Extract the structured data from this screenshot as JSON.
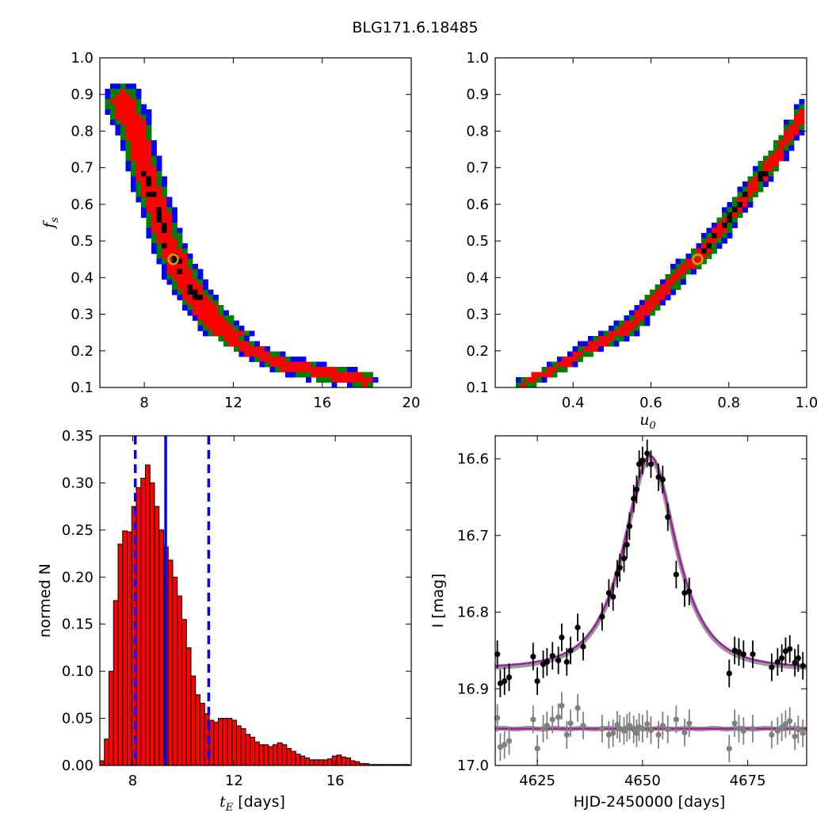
{
  "figure": {
    "title": "BLG171.6.18485"
  },
  "chart_data": [
    {
      "id": "fs_vs_tE",
      "type": "heatmap",
      "ylabel": "f_s",
      "xlabel": "",
      "xlim": [
        6,
        20
      ],
      "ylim": [
        0.1,
        1.0
      ],
      "xticks": [
        "8",
        "12",
        "16",
        "20"
      ],
      "yticks": [
        "0.1",
        "0.2",
        "0.3",
        "0.4",
        "0.5",
        "0.6",
        "0.7",
        "0.8",
        "0.9",
        "1.0"
      ],
      "confidence_colors": {
        "inner": "#000000",
        "sigma1": "#ff0000",
        "sigma2": "#008000",
        "sigma3": "#0000ff"
      },
      "ridge": [
        [
          7.0,
          0.88
        ],
        [
          7.6,
          0.8
        ],
        [
          8.0,
          0.7
        ],
        [
          8.5,
          0.6
        ],
        [
          9.0,
          0.5
        ],
        [
          9.6,
          0.42
        ],
        [
          10.3,
          0.35
        ],
        [
          11.0,
          0.29
        ],
        [
          12.0,
          0.23
        ],
        [
          13.2,
          0.19
        ],
        [
          14.5,
          0.16
        ],
        [
          16.0,
          0.14
        ],
        [
          18.0,
          0.12
        ]
      ],
      "best_fit": {
        "x": 9.3,
        "y": 0.45,
        "marker_color": "#c8a600"
      }
    },
    {
      "id": "fs_vs_u0",
      "type": "heatmap",
      "xlabel": "u_0",
      "ylabel": "",
      "xlim": [
        0.2,
        1.0
      ],
      "ylim": [
        0.1,
        1.0
      ],
      "xticks": [
        "0.4",
        "0.6",
        "0.8",
        "1.0"
      ],
      "yticks": [
        "0.1",
        "0.2",
        "0.3",
        "0.4",
        "0.5",
        "0.6",
        "0.7",
        "0.8",
        "0.9",
        "1.0"
      ],
      "confidence_colors": {
        "inner": "#000000",
        "sigma1": "#ff0000",
        "sigma2": "#008000",
        "sigma3": "#0000ff"
      },
      "ridge": [
        [
          0.27,
          0.11
        ],
        [
          0.35,
          0.15
        ],
        [
          0.45,
          0.21
        ],
        [
          0.55,
          0.27
        ],
        [
          0.62,
          0.35
        ],
        [
          0.68,
          0.42
        ],
        [
          0.72,
          0.45
        ],
        [
          0.78,
          0.53
        ],
        [
          0.85,
          0.63
        ],
        [
          0.92,
          0.73
        ],
        [
          1.0,
          0.86
        ]
      ],
      "best_fit": {
        "x": 0.72,
        "y": 0.45,
        "marker_color": "#c8a600"
      }
    },
    {
      "id": "tE_histogram",
      "type": "bar",
      "xlabel": "t_E [days]",
      "ylabel": "normed N",
      "xlim": [
        6.7,
        19.0
      ],
      "ylim": [
        0,
        0.35
      ],
      "xticks": [
        "8",
        "12",
        "16"
      ],
      "yticks": [
        "0.00",
        "0.05",
        "0.10",
        "0.15",
        "0.20",
        "0.25",
        "0.30",
        "0.35"
      ],
      "bin_start": 6.7,
      "bin_width": 0.18,
      "values": [
        0.005,
        0.028,
        0.1,
        0.175,
        0.235,
        0.249,
        0.248,
        0.275,
        0.295,
        0.305,
        0.319,
        0.3,
        0.275,
        0.25,
        0.232,
        0.218,
        0.2,
        0.18,
        0.155,
        0.125,
        0.095,
        0.075,
        0.066,
        0.055,
        0.048,
        0.046,
        0.05,
        0.05,
        0.05,
        0.048,
        0.042,
        0.039,
        0.033,
        0.03,
        0.025,
        0.022,
        0.022,
        0.02,
        0.022,
        0.024,
        0.022,
        0.018,
        0.015,
        0.012,
        0.01,
        0.008,
        0.006,
        0.006,
        0.006,
        0.006,
        0.007,
        0.01,
        0.011,
        0.009,
        0.008,
        0.005,
        0.004,
        0.002,
        0.002,
        0.001,
        0.001,
        0.001,
        0.001,
        0.001,
        0.001,
        0.001,
        0.001,
        0.001
      ],
      "bar_color": "#ff0000",
      "median": 9.3,
      "lower": 8.1,
      "upper": 11.0,
      "line_color": "#0000ff"
    },
    {
      "id": "light_curve",
      "type": "scatter",
      "xlabel": "HJD-2450000 [days]",
      "ylabel": "I [mag]",
      "xlim": [
        4615,
        4689
      ],
      "ylim": [
        17.0,
        16.57
      ],
      "xticks": [
        "4625",
        "4650",
        "4675"
      ],
      "yticks": [
        "16.6",
        "16.7",
        "16.8",
        "16.9",
        "17.0"
      ],
      "model": {
        "t0": 4651.8,
        "u0": 0.72,
        "tE": 9.3,
        "fs": 0.45,
        "I_base": 16.873,
        "color": "#a020a0",
        "alt_color": "#808080"
      },
      "data": [
        [
          4615.5,
          16.855
        ],
        [
          4616.2,
          16.893
        ],
        [
          4617.2,
          16.89
        ],
        [
          4618.3,
          16.885
        ],
        [
          4624.0,
          16.858
        ],
        [
          4625.0,
          16.89
        ],
        [
          4626.4,
          16.868
        ],
        [
          4627.3,
          16.865
        ],
        [
          4628.6,
          16.857
        ],
        [
          4630.0,
          16.863
        ],
        [
          4630.8,
          16.833
        ],
        [
          4632.0,
          16.865
        ],
        [
          4632.9,
          16.85
        ],
        [
          4634.6,
          16.82
        ],
        [
          4635.9,
          16.845
        ],
        [
          4640.4,
          16.806
        ],
        [
          4642.0,
          16.775
        ],
        [
          4643.0,
          16.78
        ],
        [
          4644.0,
          16.75
        ],
        [
          4644.6,
          16.742
        ],
        [
          4645.6,
          16.73
        ],
        [
          4646.3,
          16.712
        ],
        [
          4646.9,
          16.688
        ],
        [
          4647.9,
          16.652
        ],
        [
          4648.6,
          16.64
        ],
        [
          4649.2,
          16.607
        ],
        [
          4650.0,
          16.602
        ],
        [
          4651.1,
          16.593
        ],
        [
          4652.0,
          16.607
        ],
        [
          4653.8,
          16.624
        ],
        [
          4654.8,
          16.627
        ],
        [
          4656.0,
          16.676
        ],
        [
          4658.0,
          16.751
        ],
        [
          4660.0,
          16.775
        ],
        [
          4661.1,
          16.773
        ],
        [
          4670.6,
          16.88
        ],
        [
          4671.9,
          16.85
        ],
        [
          4672.9,
          16.852
        ],
        [
          4674.0,
          16.855
        ],
        [
          4676.2,
          16.855
        ],
        [
          4680.7,
          16.872
        ],
        [
          4682.1,
          16.865
        ],
        [
          4683.1,
          16.86
        ],
        [
          4684.0,
          16.851
        ],
        [
          4685.0,
          16.848
        ],
        [
          4686.2,
          16.866
        ],
        [
          4687.0,
          16.86
        ],
        [
          4688.1,
          16.87
        ]
      ],
      "residuals": [
        [
          4615.5,
          16.938
        ],
        [
          4616.2,
          16.976
        ],
        [
          4617.2,
          16.973
        ],
        [
          4618.3,
          16.968
        ],
        [
          4624.0,
          16.94
        ],
        [
          4625.0,
          16.978
        ],
        [
          4626.4,
          16.952
        ],
        [
          4627.3,
          16.948
        ],
        [
          4628.6,
          16.94
        ],
        [
          4630.0,
          16.937
        ],
        [
          4630.8,
          16.922
        ],
        [
          4632.0,
          16.96
        ],
        [
          4632.9,
          16.945
        ],
        [
          4634.6,
          16.925
        ],
        [
          4635.9,
          16.948
        ],
        [
          4640.4,
          16.952
        ],
        [
          4642.0,
          16.96
        ],
        [
          4643.0,
          16.958
        ],
        [
          4644.0,
          16.947
        ],
        [
          4644.6,
          16.952
        ],
        [
          4645.6,
          16.955
        ],
        [
          4646.3,
          16.951
        ],
        [
          4646.9,
          16.948
        ],
        [
          4647.9,
          16.953
        ],
        [
          4648.6,
          16.958
        ],
        [
          4649.2,
          16.95
        ],
        [
          4650.0,
          16.952
        ],
        [
          4651.1,
          16.946
        ],
        [
          4652.0,
          16.954
        ],
        [
          4653.8,
          16.96
        ],
        [
          4654.8,
          16.948
        ],
        [
          4656.0,
          16.953
        ],
        [
          4658.0,
          16.94
        ],
        [
          4660.0,
          16.957
        ],
        [
          4661.1,
          16.945
        ],
        [
          4670.6,
          16.978
        ],
        [
          4671.9,
          16.945
        ],
        [
          4672.9,
          16.952
        ],
        [
          4674.0,
          16.955
        ],
        [
          4676.2,
          16.952
        ],
        [
          4680.7,
          16.96
        ],
        [
          4682.1,
          16.955
        ],
        [
          4683.1,
          16.95
        ],
        [
          4684.0,
          16.946
        ],
        [
          4685.0,
          16.942
        ],
        [
          4686.2,
          16.962
        ],
        [
          4687.0,
          16.953
        ],
        [
          4688.1,
          16.958
        ]
      ],
      "errorbar": 0.018,
      "data_color": "#000000",
      "residual_color": "#808080",
      "residual_model_level": 16.952
    }
  ]
}
